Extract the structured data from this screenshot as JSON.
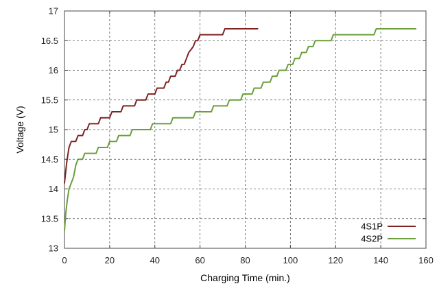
{
  "chart_data": {
    "type": "line",
    "xlabel": "Charging Time (min.)",
    "ylabel": "Voltage (V)",
    "xlim": [
      0,
      160
    ],
    "ylim": [
      13,
      17
    ],
    "xticks": [
      0,
      20,
      40,
      60,
      80,
      100,
      120,
      140,
      160
    ],
    "yticks": [
      13,
      13.5,
      14,
      14.5,
      15,
      15.5,
      16,
      16.5,
      17
    ],
    "ytick_labels": [
      "13",
      "13.5",
      "14",
      "14.5",
      "15",
      "15.5",
      "16",
      "16.5",
      "17"
    ],
    "grid": true,
    "legend_position": "bottom-right",
    "series": [
      {
        "name": "4S1P",
        "color": "#7e2222",
        "x": [
          0,
          1,
          2,
          3,
          4,
          5,
          6,
          7,
          8,
          9,
          10,
          11,
          15,
          16,
          20,
          21,
          25,
          26,
          31,
          32,
          36,
          37,
          40,
          41,
          44,
          45,
          46,
          47,
          49,
          50,
          51,
          52,
          53,
          54,
          55,
          56,
          57,
          58,
          59,
          60,
          70,
          71,
          85.5
        ],
        "y": [
          14.1,
          14.45,
          14.7,
          14.8,
          14.8,
          14.8,
          14.9,
          14.9,
          14.9,
          15.0,
          15.0,
          15.1,
          15.1,
          15.2,
          15.2,
          15.3,
          15.3,
          15.4,
          15.4,
          15.5,
          15.5,
          15.6,
          15.6,
          15.7,
          15.7,
          15.8,
          15.8,
          15.9,
          15.9,
          16.0,
          16.0,
          16.1,
          16.1,
          16.2,
          16.3,
          16.35,
          16.4,
          16.5,
          16.5,
          16.6,
          16.6,
          16.7,
          16.7
        ]
      },
      {
        "name": "4S2P",
        "color": "#6a9e3a",
        "x": [
          0,
          0.6,
          1.2,
          2,
          3,
          4,
          5,
          6,
          8,
          9,
          14,
          15,
          19,
          20,
          23,
          24,
          29,
          30,
          38,
          39,
          47,
          48,
          57,
          58,
          65,
          66,
          72,
          73,
          78,
          79,
          83,
          84,
          87,
          88,
          91,
          92,
          94,
          95,
          98,
          99,
          101,
          102,
          104,
          105,
          107,
          108,
          110,
          111,
          118,
          119,
          137,
          138,
          155.5
        ],
        "y": [
          13.3,
          13.6,
          13.8,
          14.0,
          14.1,
          14.2,
          14.4,
          14.5,
          14.5,
          14.6,
          14.6,
          14.7,
          14.7,
          14.8,
          14.8,
          14.9,
          14.9,
          15.0,
          15.0,
          15.1,
          15.1,
          15.2,
          15.2,
          15.3,
          15.3,
          15.4,
          15.4,
          15.5,
          15.5,
          15.6,
          15.6,
          15.7,
          15.7,
          15.8,
          15.8,
          15.9,
          15.9,
          16.0,
          16.0,
          16.1,
          16.1,
          16.2,
          16.2,
          16.3,
          16.3,
          16.4,
          16.4,
          16.5,
          16.5,
          16.6,
          16.6,
          16.7,
          16.7
        ]
      }
    ]
  }
}
